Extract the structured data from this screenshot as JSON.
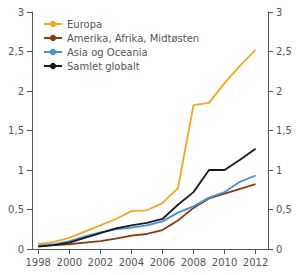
{
  "chart_data": {
    "type": "line",
    "x": [
      1998,
      1999,
      2000,
      2001,
      2002,
      2003,
      2004,
      2005,
      2006,
      2007,
      2008,
      2009,
      2010,
      2011,
      2012
    ],
    "series": [
      {
        "name": "Europa",
        "color": "#F5A623",
        "values": [
          0.06,
          0.09,
          0.14,
          0.22,
          0.3,
          0.38,
          0.48,
          0.49,
          0.58,
          0.77,
          1.82,
          1.85,
          2.1,
          2.32,
          2.52
        ]
      },
      {
        "name": "Amerika, Afrika, Midtøsten",
        "color": "#8B3A0F",
        "values": [
          0.04,
          0.05,
          0.06,
          0.08,
          0.1,
          0.13,
          0.17,
          0.19,
          0.24,
          0.36,
          0.52,
          0.64,
          0.7,
          0.76,
          0.82
        ]
      },
      {
        "name": "Asia og Oceania",
        "color": "#4A90D9",
        "values": [
          0.04,
          0.06,
          0.1,
          0.16,
          0.21,
          0.25,
          0.27,
          0.3,
          0.35,
          0.46,
          0.54,
          0.65,
          0.72,
          0.85,
          0.93
        ]
      },
      {
        "name": "Samlet globalt",
        "color": "#1A1A1A",
        "values": [
          0.03,
          0.05,
          0.08,
          0.14,
          0.2,
          0.26,
          0.3,
          0.33,
          0.38,
          0.56,
          0.72,
          1.0,
          1.0,
          1.13,
          1.27
        ]
      }
    ],
    "xlim": [
      1997.6,
      2012.8
    ],
    "xticks": [
      1998,
      2000,
      2002,
      2004,
      2006,
      2008,
      2010,
      2012
    ],
    "ylim": [
      0,
      3
    ],
    "yticks": [
      0,
      {
        "value": 0.5,
        "label": "0,5"
      },
      1,
      {
        "value": 1.5,
        "label": "1,5"
      },
      2,
      {
        "value": 2.5,
        "label": "2,5"
      },
      3
    ],
    "y2lim": [
      0,
      3
    ],
    "y2ticks": [
      0,
      {
        "value": 0.5,
        "label": "0,5"
      },
      1,
      {
        "value": 1.5,
        "label": "1,5"
      },
      2,
      {
        "value": 2.5,
        "label": "2,5"
      },
      3
    ],
    "grid": false,
    "legend": "upper left"
  }
}
